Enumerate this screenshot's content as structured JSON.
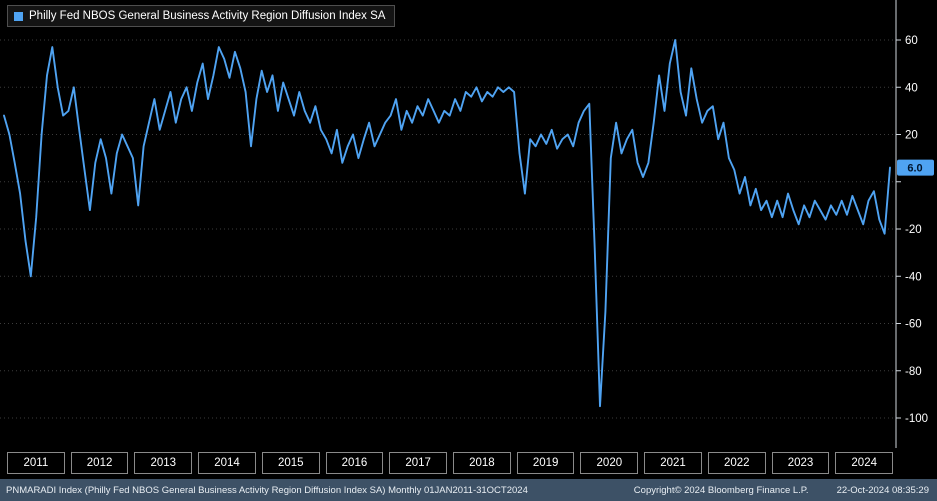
{
  "legend": {
    "label": "Philly Fed NBOS General Business Activity Region Diffusion Index SA",
    "swatch_color": "#4fa3f2"
  },
  "colors": {
    "line": "#4fa3f2",
    "last_value_badge_bg": "#4fa3f2",
    "last_value_badge_text": "#00152e",
    "grid": "#3c3c3c",
    "axis": "#cfd6dd",
    "footer_bg": "#3d5166",
    "background": "#000000"
  },
  "chart_data": {
    "type": "line",
    "title": "Philly Fed NBOS General Business Activity Region Diffusion Index SA",
    "frequency": "Monthly",
    "x_start": "2011-01",
    "x_end": "2024-10",
    "x_tick_years": [
      "2011",
      "2012",
      "2013",
      "2014",
      "2015",
      "2016",
      "2017",
      "2018",
      "2019",
      "2020",
      "2021",
      "2022",
      "2023",
      "2024"
    ],
    "ylim": [
      -100,
      60
    ],
    "yticks": [
      60,
      40,
      20,
      0,
      -20,
      -40,
      -60,
      -80,
      -100
    ],
    "hidden_tick_labels": [
      0
    ],
    "grid": "horizontal-dotted",
    "legend_position": "top-left",
    "axis_side": "right",
    "last_value": 6.0,
    "last_value_label": "6.0",
    "series": [
      {
        "name": "PNMARADI Index",
        "color": "#4fa3f2",
        "values": [
          28,
          20,
          8,
          -5,
          -25,
          -40,
          -15,
          20,
          45,
          57,
          40,
          28,
          30,
          40,
          22,
          5,
          -12,
          8,
          18,
          10,
          -5,
          12,
          20,
          15,
          10,
          -10,
          15,
          25,
          35,
          22,
          30,
          38,
          25,
          35,
          40,
          30,
          42,
          50,
          35,
          45,
          57,
          52,
          44,
          55,
          48,
          38,
          15,
          35,
          47,
          38,
          45,
          30,
          42,
          35,
          28,
          38,
          30,
          25,
          32,
          22,
          18,
          12,
          22,
          8,
          15,
          20,
          10,
          18,
          25,
          15,
          20,
          25,
          28,
          35,
          22,
          30,
          25,
          32,
          28,
          35,
          30,
          25,
          30,
          28,
          35,
          30,
          38,
          36,
          40,
          34,
          38,
          36,
          40,
          38,
          40,
          38,
          12,
          -5,
          18,
          15,
          20,
          16,
          22,
          14,
          18,
          20,
          15,
          25,
          30,
          33,
          -28,
          -95,
          -55,
          10,
          25,
          12,
          18,
          22,
          8,
          2,
          8,
          25,
          45,
          30,
          50,
          60,
          38,
          28,
          48,
          35,
          25,
          30,
          32,
          18,
          25,
          10,
          5,
          -5,
          2,
          -10,
          -3,
          -12,
          -8,
          -15,
          -8,
          -15,
          -5,
          -12,
          -18,
          -10,
          -15,
          -8,
          -12,
          -16,
          -10,
          -14,
          -8,
          -14,
          -6,
          -12,
          -18,
          -8,
          -4,
          -16,
          -22,
          6
        ]
      }
    ]
  },
  "footer": {
    "left": "PNMARADI Index (Philly Fed NBOS General Business Activity Region Diffusion Index SA)  Monthly 01JAN2011-31OCT2024",
    "copyright": "Copyright© 2024 Bloomberg Finance L.P.",
    "timestamp": "22-Oct-2024 08:35:29"
  }
}
